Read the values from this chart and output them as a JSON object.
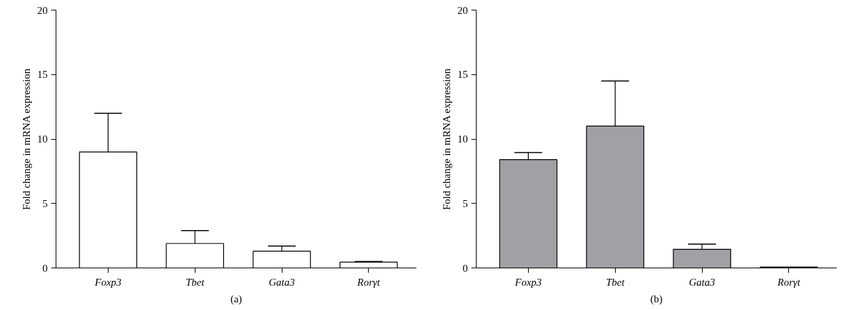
{
  "chart_data": [
    {
      "type": "bar",
      "xlabel": "(a)",
      "ylabel": "Fold change in mRNA expression",
      "categories": [
        "Foxp3",
        "Tbet",
        "Gata3",
        "Rorγt"
      ],
      "values": [
        9.0,
        1.9,
        1.3,
        0.45
      ],
      "errors": [
        [
          9.0,
          12.0
        ],
        [
          1.9,
          2.9
        ],
        [
          1.3,
          1.7
        ],
        [
          0.45,
          0.5
        ]
      ],
      "color": "#ffffff",
      "ylim": [
        0,
        20
      ],
      "yticks": [
        0,
        5,
        10,
        15,
        20
      ],
      "grid": false
    },
    {
      "type": "bar",
      "xlabel": "(b)",
      "ylabel": "Fold change in mRNA expression",
      "categories": [
        "Foxp3",
        "Tbet",
        "Gata3",
        "Rorγt"
      ],
      "values": [
        8.4,
        11.0,
        1.45,
        0.07
      ],
      "errors": [
        [
          8.4,
          8.95
        ],
        [
          11.0,
          14.5
        ],
        [
          1.45,
          1.85
        ],
        null
      ],
      "color": "#a0a1a5",
      "ylim": [
        0,
        20
      ],
      "yticks": [
        0,
        5,
        10,
        15,
        20
      ],
      "grid": false
    }
  ]
}
